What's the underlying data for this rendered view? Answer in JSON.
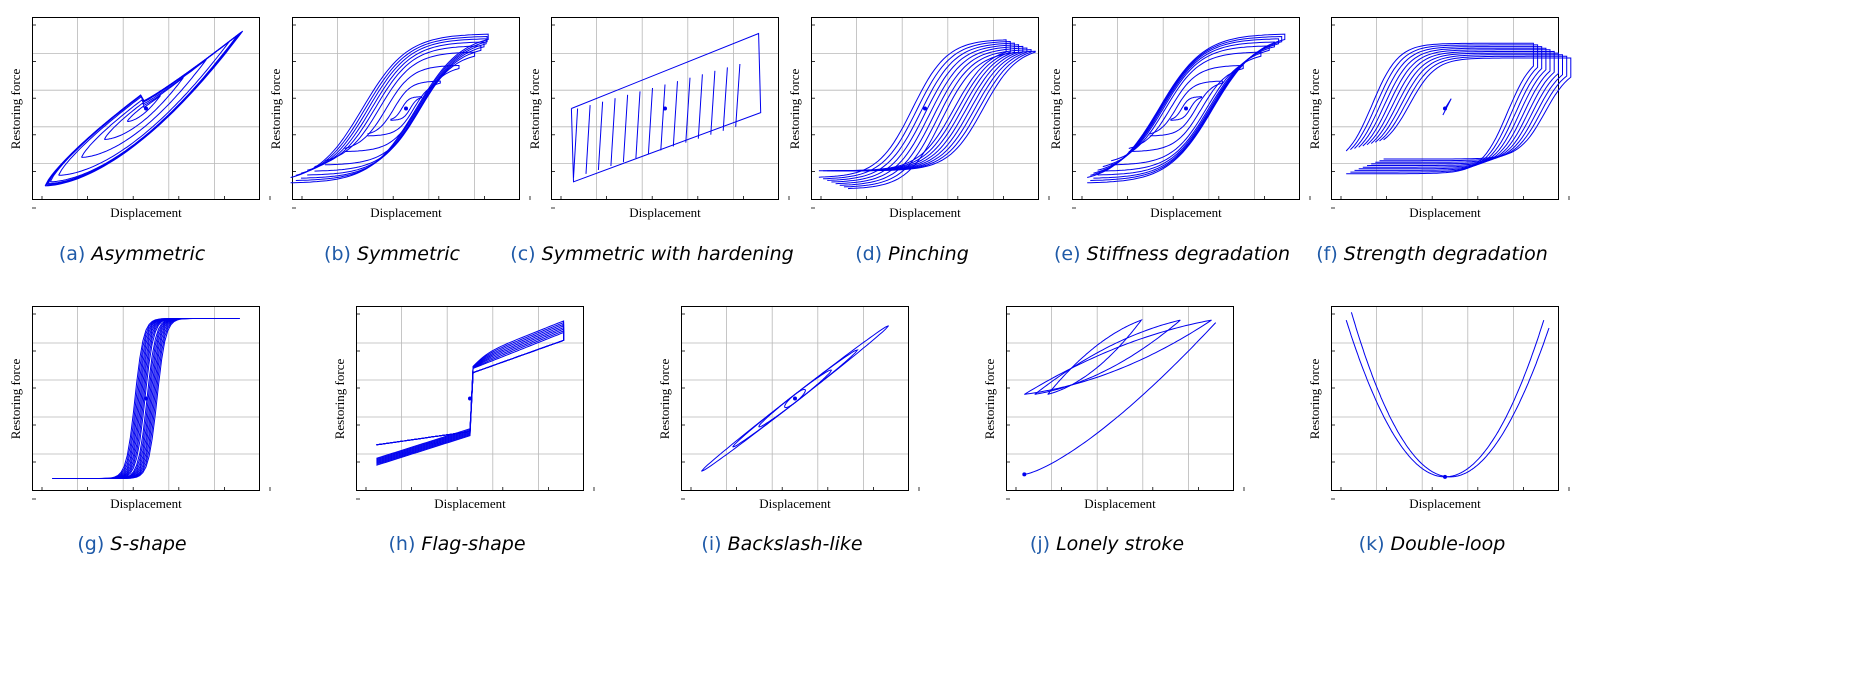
{
  "colors": {
    "series": "#0000ee",
    "grid": "#b8b8b8",
    "frame": "#000000",
    "caption_tag": "#1f5aa8"
  },
  "chart_data": [
    {
      "tag": "(a)",
      "name": "Asymmetric",
      "type": "line",
      "shape": "asymmetric",
      "xlabel": "Displacement",
      "ylabel": "Restoring force",
      "xlim": [
        -1,
        1
      ],
      "ylim": [
        -1,
        1
      ],
      "grid": true,
      "series": []
    },
    {
      "tag": "(b)",
      "name": "Symmetric",
      "type": "line",
      "shape": "symmetric",
      "xlabel": "Displacement",
      "ylabel": "Restoring force",
      "xlim": [
        -1,
        1
      ],
      "ylim": [
        -1,
        1
      ],
      "grid": true,
      "series": []
    },
    {
      "tag": "(c)",
      "name": "Symmetric with hardening",
      "type": "line",
      "shape": "hardening",
      "xlabel": "Displacement",
      "ylabel": "Restoring force",
      "xlim": [
        -1,
        1
      ],
      "ylim": [
        -1,
        1
      ],
      "grid": true,
      "series": []
    },
    {
      "tag": "(d)",
      "name": "Pinching",
      "type": "line",
      "shape": "pinching",
      "xlabel": "Displacement",
      "ylabel": "Restoring force",
      "xlim": [
        -1,
        1
      ],
      "ylim": [
        -1,
        1
      ],
      "grid": true,
      "series": []
    },
    {
      "tag": "(e)",
      "name": "Stiffness degradation",
      "type": "line",
      "shape": "stiffness",
      "xlabel": "Displacement",
      "ylabel": "Restoring force",
      "xlim": [
        -1,
        1
      ],
      "ylim": [
        -1,
        1
      ],
      "grid": true,
      "series": []
    },
    {
      "tag": "(f)",
      "name": "Strength degradation",
      "type": "line",
      "shape": "strength",
      "xlabel": "Displacement",
      "ylabel": "Restoring force",
      "xlim": [
        -1,
        1
      ],
      "ylim": [
        -1,
        1
      ],
      "grid": true,
      "series": []
    },
    {
      "tag": "(g)",
      "name": "S-shape",
      "type": "line",
      "shape": "sshape",
      "xlabel": "Displacement",
      "ylabel": "Restoring force",
      "xlim": [
        -1,
        1
      ],
      "ylim": [
        -1,
        1
      ],
      "grid": true,
      "series": []
    },
    {
      "tag": "(h)",
      "name": "Flag-shape",
      "type": "line",
      "shape": "flag",
      "xlabel": "Displacement",
      "ylabel": "Restoring force",
      "xlim": [
        -1,
        1
      ],
      "ylim": [
        -1,
        1
      ],
      "grid": true,
      "series": []
    },
    {
      "tag": "(i)",
      "name": "Backslash-like",
      "type": "line",
      "shape": "backslash",
      "xlabel": "Displacement",
      "ylabel": "Restoring force",
      "xlim": [
        -1,
        1
      ],
      "ylim": [
        -1,
        1
      ],
      "grid": true,
      "series": []
    },
    {
      "tag": "(j)",
      "name": "Lonely stroke",
      "type": "line",
      "shape": "lonely",
      "xlabel": "Displacement",
      "ylabel": "Restoring force",
      "xlim": [
        -1,
        1
      ],
      "ylim": [
        -1,
        1
      ],
      "grid": true,
      "series": []
    },
    {
      "tag": "(k)",
      "name": "Double-loop",
      "type": "line",
      "shape": "doubleloop",
      "xlabel": "Displacement",
      "ylabel": "Restoring force",
      "xlim": [
        -1,
        1
      ],
      "ylim": [
        -1,
        1
      ],
      "grid": true,
      "series": []
    }
  ]
}
